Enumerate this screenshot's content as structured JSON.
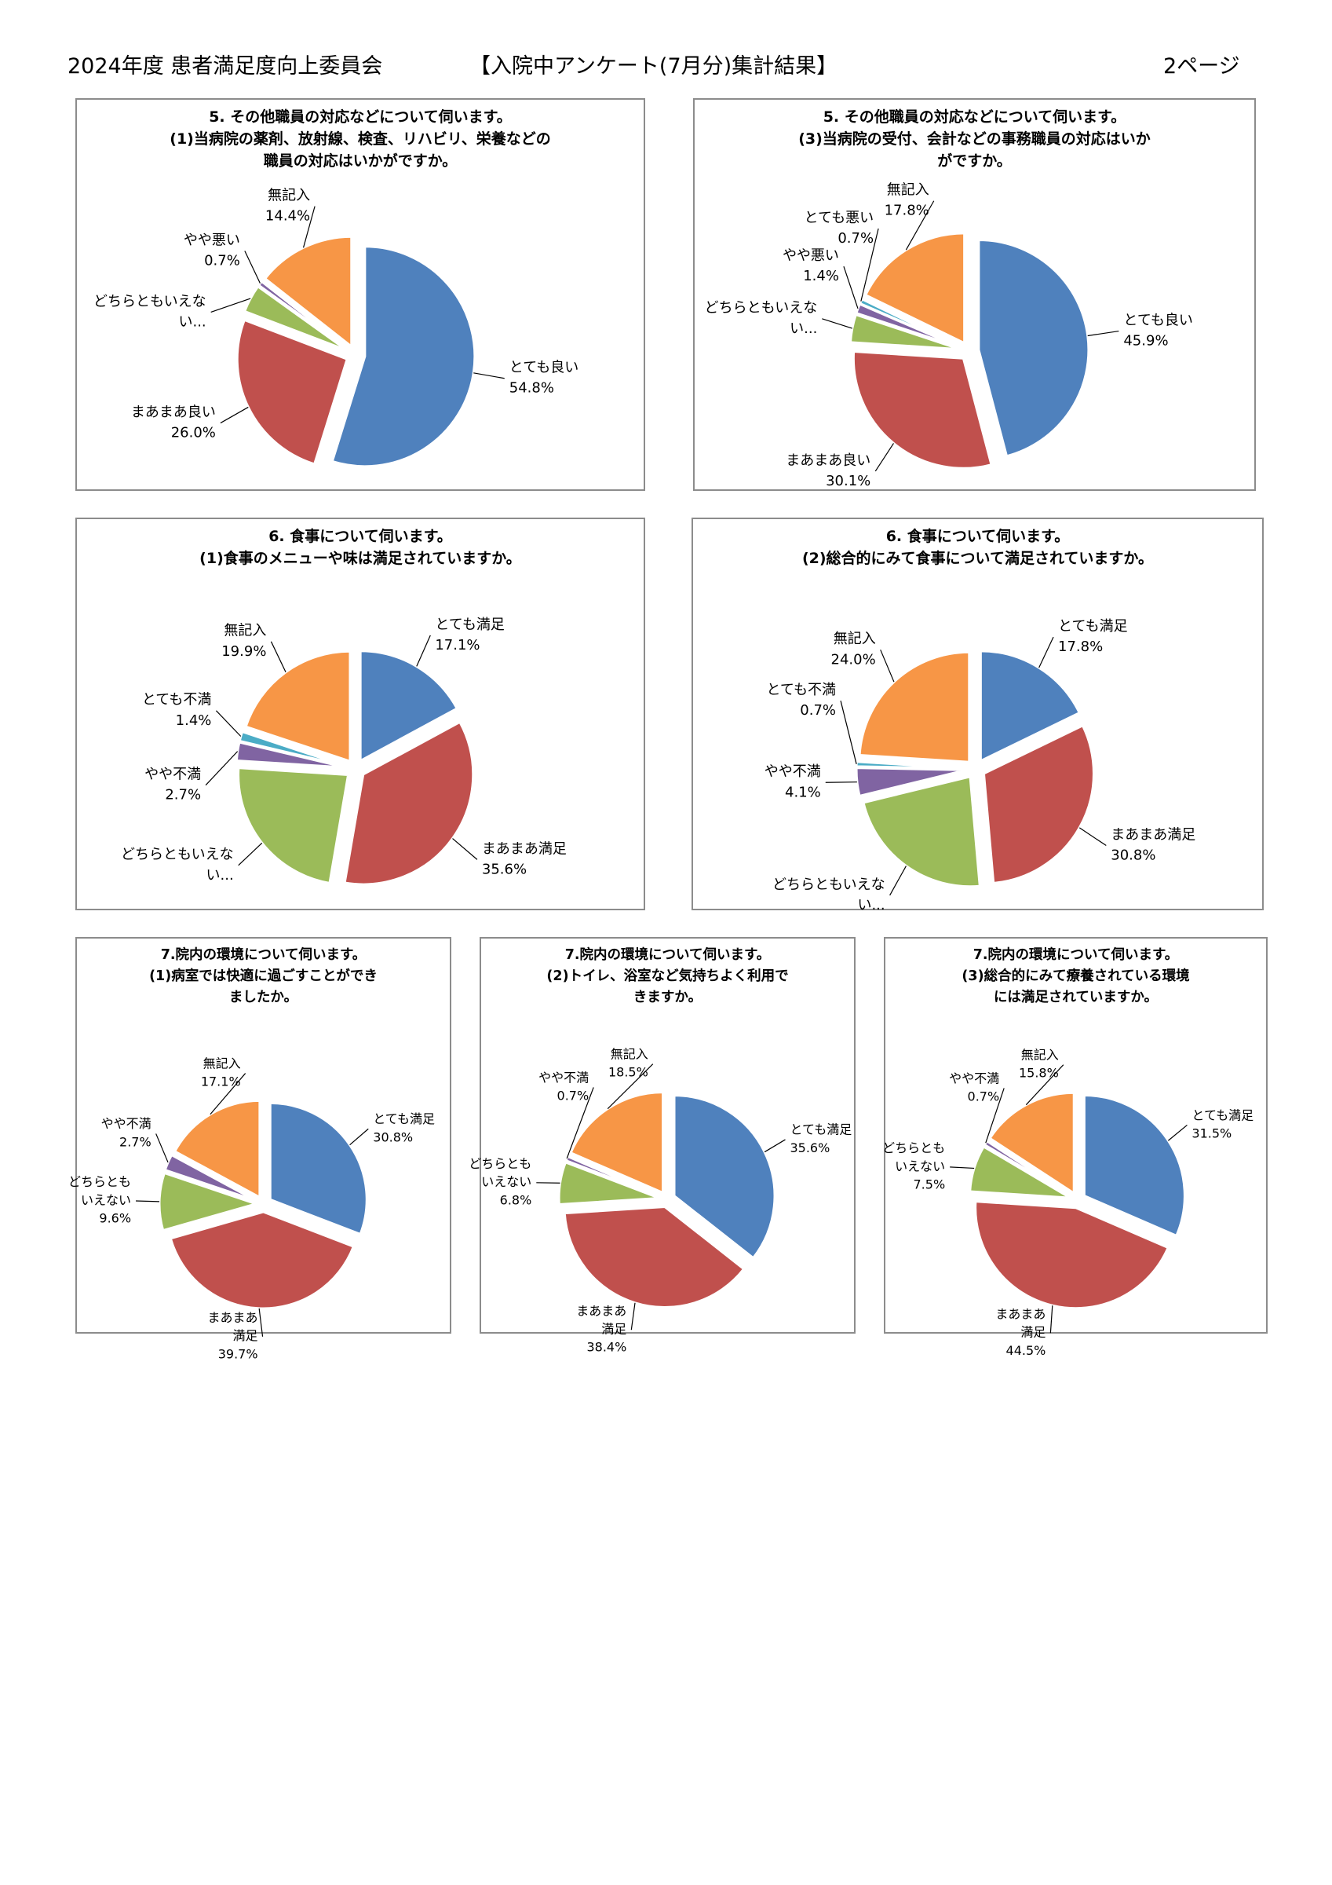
{
  "header": {
    "left": "2024年度 患者満足度向上委員会",
    "center": "【入院中アンケート(7月分)集計結果】",
    "page": "2ページ"
  },
  "colors": {
    "blue": "#4F81BD",
    "red": "#C0504D",
    "green": "#9BBB59",
    "purple": "#8064A2",
    "cyan": "#4BACC6",
    "orange": "#F79646"
  },
  "chart_data": [
    {
      "id": "c51",
      "type": "pie",
      "title": "5. その他職員の対応などについて伺います。\n(1)当病院の薬剤、放射線、検査、リハビリ、栄養などの\n職員の対応はいかがですか。",
      "slices": [
        {
          "label": "とても良い",
          "pct": "54.8%",
          "value": 54.8,
          "color": "blue"
        },
        {
          "label": "まあまあ良い",
          "pct": "26.0%",
          "value": 26.0,
          "color": "red"
        },
        {
          "label": "どちらともいえな\nい...",
          "pct": "",
          "value": 4.1,
          "color": "green"
        },
        {
          "label": "やや悪い",
          "pct": "0.7%",
          "value": 0.7,
          "color": "purple"
        },
        {
          "label": "無記入",
          "pct": "14.4%",
          "value": 14.4,
          "color": "orange"
        }
      ]
    },
    {
      "id": "c53",
      "type": "pie",
      "title": "5. その他職員の対応などについて伺います。\n(3)当病院の受付、会計などの事務職員の対応はいか\nがですか。",
      "slices": [
        {
          "label": "とても良い",
          "pct": "45.9%",
          "value": 45.9,
          "color": "blue"
        },
        {
          "label": "まあまあ良い",
          "pct": "30.1%",
          "value": 30.1,
          "color": "red"
        },
        {
          "label": "どちらともいえな\nい...",
          "pct": "",
          "value": 4.1,
          "color": "green"
        },
        {
          "label": "やや悪い",
          "pct": "1.4%",
          "value": 1.4,
          "color": "purple"
        },
        {
          "label": "とても悪い",
          "pct": "0.7%",
          "value": 0.7,
          "color": "cyan"
        },
        {
          "label": "無記入",
          "pct": "17.8%",
          "value": 17.8,
          "color": "orange"
        }
      ]
    },
    {
      "id": "c61",
      "type": "pie",
      "title": "6. 食事について伺います。\n(1)食事のメニューや味は満足されていますか。",
      "slices": [
        {
          "label": "とても満足",
          "pct": "17.1%",
          "value": 17.1,
          "color": "blue"
        },
        {
          "label": "まあまあ満足",
          "pct": "35.6%",
          "value": 35.6,
          "color": "red"
        },
        {
          "label": "どちらともいえな\nい...",
          "pct": "",
          "value": 23.3,
          "color": "green"
        },
        {
          "label": "やや不満",
          "pct": "2.7%",
          "value": 2.7,
          "color": "purple"
        },
        {
          "label": "とても不満",
          "pct": "1.4%",
          "value": 1.4,
          "color": "cyan"
        },
        {
          "label": "無記入",
          "pct": "19.9%",
          "value": 19.9,
          "color": "orange"
        }
      ]
    },
    {
      "id": "c62",
      "type": "pie",
      "title": "6. 食事について伺います。\n(2)総合的にみて食事について満足されていますか。",
      "slices": [
        {
          "label": "とても満足",
          "pct": "17.8%",
          "value": 17.8,
          "color": "blue"
        },
        {
          "label": "まあまあ満足",
          "pct": "30.8%",
          "value": 30.8,
          "color": "red"
        },
        {
          "label": "どちらともいえな\nい...",
          "pct": "",
          "value": 22.6,
          "color": "green"
        },
        {
          "label": "やや不満",
          "pct": "4.1%",
          "value": 4.1,
          "color": "purple"
        },
        {
          "label": "とても不満",
          "pct": "0.7%",
          "value": 0.7,
          "color": "cyan"
        },
        {
          "label": "無記入",
          "pct": "24.0%",
          "value": 24.0,
          "color": "orange"
        }
      ]
    },
    {
      "id": "c71",
      "type": "pie",
      "title": "7.院内の環境について伺います。\n(1)病室では快適に過ごすことができ\nましたか。",
      "slices": [
        {
          "label": "とても満足",
          "pct": "30.8%",
          "value": 30.8,
          "color": "blue"
        },
        {
          "label": "まあまあ\n満足",
          "pct": "39.7%",
          "value": 39.7,
          "color": "red"
        },
        {
          "label": "どちらとも\nいえない",
          "pct": "9.6%",
          "value": 9.6,
          "color": "green"
        },
        {
          "label": "やや不満",
          "pct": "2.7%",
          "value": 2.7,
          "color": "purple"
        },
        {
          "label": "無記入",
          "pct": "17.1%",
          "value": 17.1,
          "color": "orange"
        }
      ]
    },
    {
      "id": "c72",
      "type": "pie",
      "title": "7.院内の環境について伺います。\n(2)トイレ、浴室など気持ちよく利用で\nきますか。",
      "slices": [
        {
          "label": "とても満足",
          "pct": "35.6%",
          "value": 35.6,
          "color": "blue"
        },
        {
          "label": "まあまあ\n満足",
          "pct": "38.4%",
          "value": 38.4,
          "color": "red"
        },
        {
          "label": "どちらとも\nいえない",
          "pct": "6.8%",
          "value": 6.8,
          "color": "green"
        },
        {
          "label": "やや不満",
          "pct": "0.7%",
          "value": 0.7,
          "color": "purple"
        },
        {
          "label": "無記入",
          "pct": "18.5%",
          "value": 18.5,
          "color": "orange"
        }
      ]
    },
    {
      "id": "c73",
      "type": "pie",
      "title": "7.院内の環境について伺います。\n(3)総合的にみて療養されている環境\nには満足されていますか。",
      "slices": [
        {
          "label": "とても満足",
          "pct": "31.5%",
          "value": 31.5,
          "color": "blue"
        },
        {
          "label": "まあまあ\n満足",
          "pct": "44.5%",
          "value": 44.5,
          "color": "red"
        },
        {
          "label": "どちらとも\nいえない",
          "pct": "7.5%",
          "value": 7.5,
          "color": "green"
        },
        {
          "label": "やや不満",
          "pct": "0.7%",
          "value": 0.7,
          "color": "purple"
        },
        {
          "label": "無記入",
          "pct": "15.8%",
          "value": 15.8,
          "color": "orange"
        }
      ]
    }
  ]
}
